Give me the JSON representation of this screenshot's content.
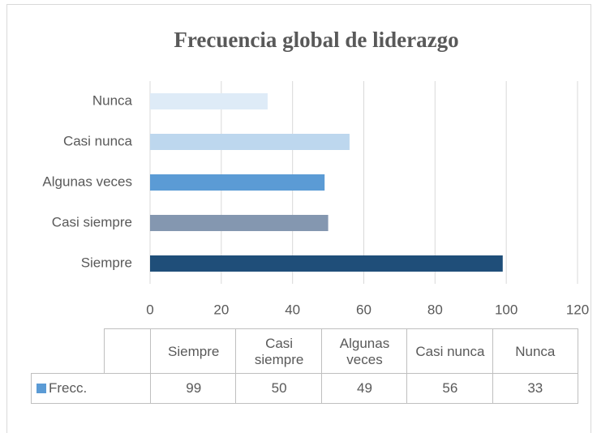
{
  "chart_data": {
    "type": "bar",
    "orientation": "horizontal",
    "title": "Frecuencia global de liderazgo",
    "categories": [
      "Siempre",
      "Casi siempre",
      "Algunas veces",
      "Casi nunca",
      "Nunca"
    ],
    "series": [
      {
        "name": "Frecc.",
        "color": "#5b9bd5",
        "colors": [
          "#1f4e79",
          "#8497b0",
          "#5b9bd5",
          "#bdd7ee",
          "#deebf7"
        ],
        "values": [
          99,
          50,
          49,
          56,
          33
        ]
      }
    ],
    "xlim": [
      0,
      120
    ],
    "xticks": [
      0,
      20,
      40,
      60,
      80,
      100,
      120
    ],
    "grid": true,
    "data_table": true
  }
}
